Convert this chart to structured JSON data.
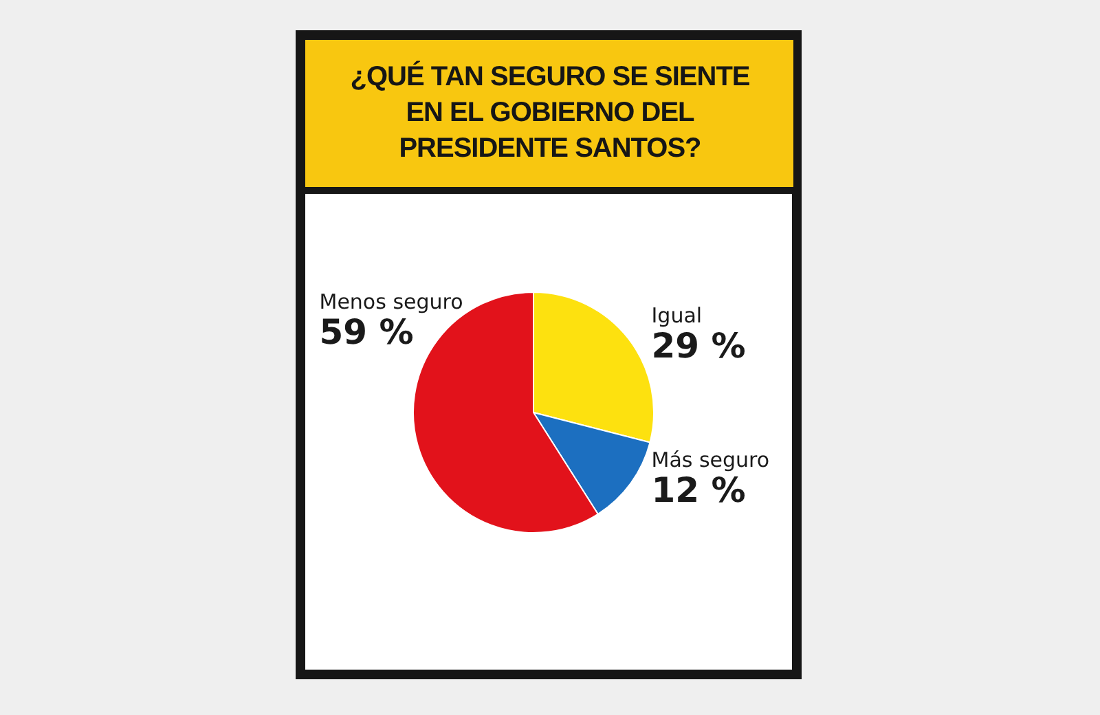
{
  "chart_data": {
    "type": "pie",
    "title": "¿QUÉ TAN SEGURO SE SIENTE EN EL GOBIERNO DEL PRESIDENTE SANTOS?",
    "categories": [
      "Igual",
      "Más seguro",
      "Menos seguro"
    ],
    "values": [
      29,
      12,
      59
    ],
    "colors": [
      "#fde10f",
      "#1c6fc0",
      "#e2121b"
    ],
    "value_labels": [
      "29 %",
      "12 %",
      "59 %"
    ]
  }
}
